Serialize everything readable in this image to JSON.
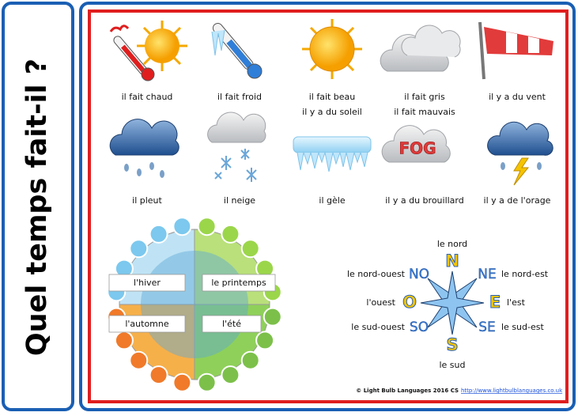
{
  "title": "Quel temps fait-il ?",
  "weather": [
    {
      "lines": [
        "il fait chaud"
      ]
    },
    {
      "lines": [
        "il fait froid"
      ]
    },
    {
      "lines": [
        "il fait beau",
        "il y a du soleil"
      ]
    },
    {
      "lines": [
        "il fait gris",
        "il fait mauvais"
      ]
    },
    {
      "lines": [
        "il y a du vent"
      ]
    },
    {
      "lines": [
        "il pleut"
      ]
    },
    {
      "lines": [
        "il neige"
      ]
    },
    {
      "lines": [
        "il gèle"
      ]
    },
    {
      "lines": [
        "il y a du brouillard"
      ],
      "sign": "FOG"
    },
    {
      "lines": [
        "il y a de l'orage"
      ]
    }
  ],
  "seasons": [
    "l'hiver",
    "le printemps",
    "l'automne",
    "l'été"
  ],
  "compass": [
    {
      "label": "le nord",
      "abbr": "N"
    },
    {
      "label": "le nord-est",
      "abbr": "NE"
    },
    {
      "label": "l'est",
      "abbr": "E"
    },
    {
      "label": "le sud-est",
      "abbr": "SE"
    },
    {
      "label": "le sud",
      "abbr": "S"
    },
    {
      "label": "le sud-ouest",
      "abbr": "SO"
    },
    {
      "label": "l'ouest",
      "abbr": "O"
    },
    {
      "label": "le nord-ouest",
      "abbr": "NO"
    }
  ],
  "footer": {
    "credit": "© Light Bulb Languages 2016 CS",
    "url": "http://www.lightbulblanguages.co.uk"
  }
}
